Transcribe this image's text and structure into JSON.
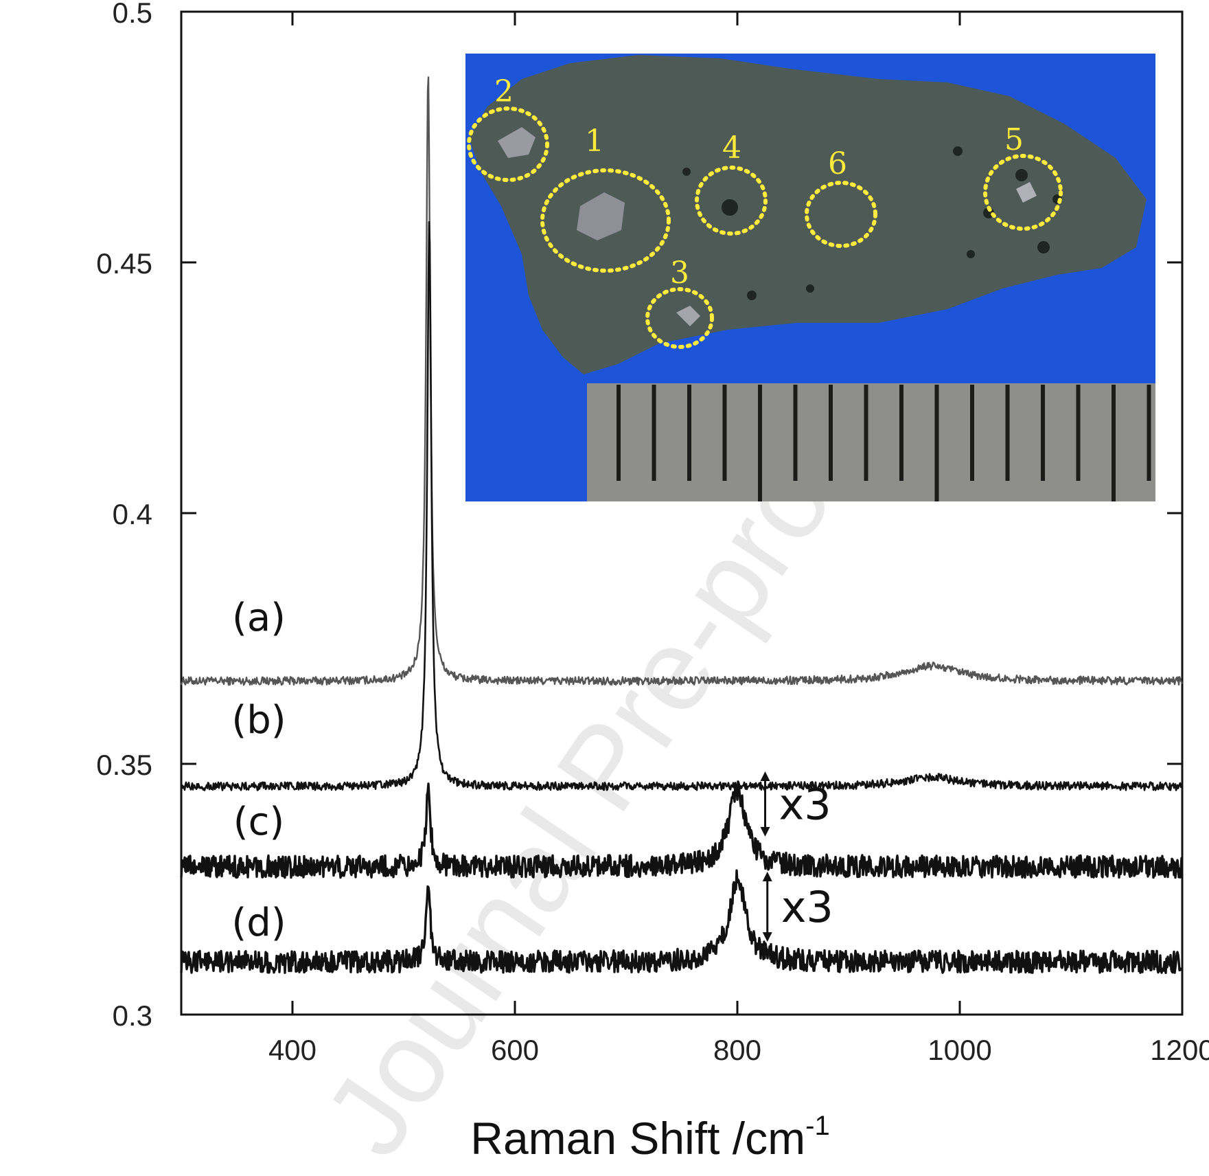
{
  "watermark": "Journal Pre-proof",
  "chart_data": {
    "type": "line",
    "title": "",
    "xlabel": "Raman Shift /cm",
    "xlabel_superscript": "-1",
    "ylabel": "",
    "xlim": [
      300,
      1200
    ],
    "ylim": [
      0.3,
      0.5
    ],
    "x_ticks": [
      400,
      600,
      800,
      1000,
      1200
    ],
    "x_tick_labels": [
      "400",
      "600",
      "800",
      "1000",
      "1200"
    ],
    "y_ticks": [
      0.3,
      0.35,
      0.4,
      0.45,
      0.5
    ],
    "y_tick_labels": [
      "0.3",
      "0.35",
      "0.4",
      "0.45",
      "0.5"
    ],
    "grid": false,
    "series": [
      {
        "name": "(a)",
        "color": "#555555",
        "baseline": 0.3665,
        "noise": 0.0008,
        "peaks": [
          {
            "center": 522,
            "height": 0.122,
            "width": 2.2
          },
          {
            "center": 975,
            "height": 0.003,
            "width": 30
          }
        ],
        "points": [
          [
            300,
            0.3665
          ],
          [
            505,
            0.3668
          ],
          [
            515,
            0.372
          ],
          [
            520,
            0.43
          ],
          [
            522,
            0.4885
          ],
          [
            524,
            0.43
          ],
          [
            529,
            0.372
          ],
          [
            545,
            0.3668
          ],
          [
            940,
            0.3668
          ],
          [
            975,
            0.3695
          ],
          [
            1010,
            0.3668
          ],
          [
            1200,
            0.3655
          ]
        ]
      },
      {
        "name": "(b)",
        "color": "#111111",
        "baseline": 0.3455,
        "noise": 0.0008,
        "peaks": [
          {
            "center": 523,
            "height": 0.113,
            "width": 2.2
          },
          {
            "center": 975,
            "height": 0.0018,
            "width": 30
          }
        ],
        "points": [
          [
            300,
            0.346
          ],
          [
            505,
            0.3458
          ],
          [
            515,
            0.352
          ],
          [
            520,
            0.41
          ],
          [
            523,
            0.4585
          ],
          [
            526,
            0.41
          ],
          [
            531,
            0.352
          ],
          [
            545,
            0.3455
          ],
          [
            940,
            0.3455
          ],
          [
            975,
            0.3473
          ],
          [
            1010,
            0.3455
          ],
          [
            1200,
            0.3448
          ]
        ]
      },
      {
        "name": "(c)",
        "color": "#111111",
        "baseline": 0.3295,
        "noise": 0.0022,
        "peaks": [
          {
            "center": 522,
            "height": 0.0145,
            "width": 2.6
          },
          {
            "center": 800,
            "height": 0.0155,
            "width": 9
          }
        ],
        "points": [
          [
            300,
            0.3295
          ],
          [
            515,
            0.33
          ],
          [
            522,
            0.344
          ],
          [
            530,
            0.33
          ],
          [
            780,
            0.331
          ],
          [
            800,
            0.3475
          ],
          [
            815,
            0.332
          ],
          [
            1200,
            0.3325
          ]
        ]
      },
      {
        "name": "(d)",
        "color": "#111111",
        "baseline": 0.3105,
        "noise": 0.0022,
        "peaks": [
          {
            "center": 522,
            "height": 0.0135,
            "width": 2.6
          },
          {
            "center": 800,
            "height": 0.0165,
            "width": 9
          }
        ],
        "points": [
          [
            300,
            0.3105
          ],
          [
            515,
            0.311
          ],
          [
            522,
            0.324
          ],
          [
            530,
            0.311
          ],
          [
            780,
            0.312
          ],
          [
            800,
            0.3275
          ],
          [
            815,
            0.3125
          ],
          [
            1200,
            0.3135
          ]
        ]
      }
    ],
    "annotations": [
      {
        "text": "x3",
        "arrow_x": 825,
        "arrow_y_top": 0.3485,
        "arrow_y_bottom": 0.3355
      },
      {
        "text": "x3",
        "arrow_x": 827,
        "arrow_y_top": 0.3285,
        "arrow_y_bottom": 0.3145
      }
    ]
  },
  "inset_photo": {
    "region_labels": [
      "1",
      "2",
      "3",
      "4",
      "5",
      "6"
    ]
  },
  "colors": {
    "inset_background": "#1e55d8",
    "rock": "#4d5a55",
    "circle": "#ffeb3b",
    "ruler": "#8e8e8a"
  }
}
